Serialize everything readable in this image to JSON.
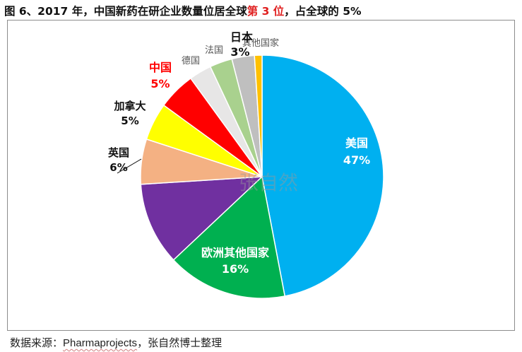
{
  "title_parts": {
    "pre": "图 6、2017 年，中国新药在研企业数量位居全球",
    "highlight": "第 3 位",
    "post": "，占全球的 5%"
  },
  "source_parts": {
    "pre": "数据来源：",
    "link": "Pharmaprojects",
    "post": "，张自然博士整理"
  },
  "watermark": "张自然",
  "chart_data": {
    "type": "pie",
    "title": "图 6、2017 年，中国新药在研企业数量位居全球第 3 位，占全球的 5%",
    "slices": [
      {
        "name": "美国",
        "value": 47,
        "label": "47%",
        "color": "#00b0f0"
      },
      {
        "name": "欧洲其他国家",
        "value": 16,
        "label": "16%",
        "color": "#00b050"
      },
      {
        "name": "",
        "value": 11,
        "label": "",
        "color": "#7030a0"
      },
      {
        "name": "英国",
        "value": 6,
        "label": "6%",
        "color": "#f4b183"
      },
      {
        "name": "加拿大",
        "value": 5,
        "label": "5%",
        "color": "#ffff00"
      },
      {
        "name": "中国",
        "value": 5,
        "label": "5%",
        "color": "#ff0000"
      },
      {
        "name": "德国",
        "value": 3,
        "label": "",
        "color": "#e7e6e6"
      },
      {
        "name": "法国",
        "value": 3,
        "label": "",
        "color": "#a9d18e"
      },
      {
        "name": "日本",
        "value": 3,
        "label": "3%",
        "color": "#bfbfbf"
      },
      {
        "name": "其他国家",
        "value": 1,
        "label": "",
        "color": "#ffc000"
      }
    ]
  }
}
